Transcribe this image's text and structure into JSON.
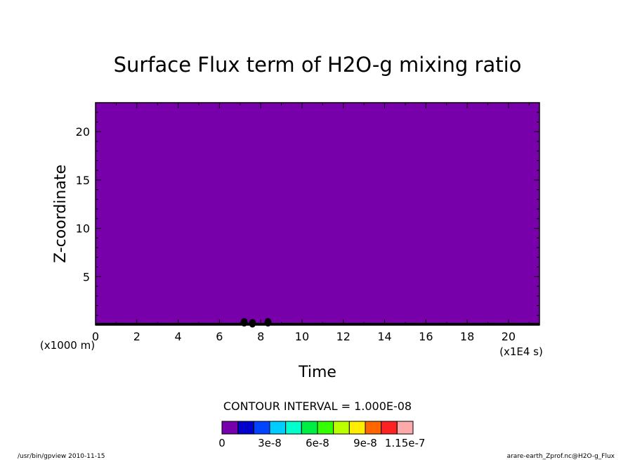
{
  "chart_data": {
    "type": "heatmap",
    "title": "Surface Flux term of H2O-g mixing ratio",
    "xlabel": "Time",
    "ylabel": "Z-coordinate",
    "x_unit": "(x1E4 s)",
    "y_unit": "(x1000 m)",
    "xlim": [
      0,
      21.5
    ],
    "ylim": [
      0,
      23
    ],
    "x_ticks": [
      {
        "value": 0,
        "label": "0"
      },
      {
        "value": 2,
        "label": "2"
      },
      {
        "value": 4,
        "label": "4"
      },
      {
        "value": 6,
        "label": "6"
      },
      {
        "value": 8,
        "label": "8"
      },
      {
        "value": 10,
        "label": "10"
      },
      {
        "value": 12,
        "label": "12"
      },
      {
        "value": 14,
        "label": "14"
      },
      {
        "value": 16,
        "label": "16"
      },
      {
        "value": 18,
        "label": "18"
      },
      {
        "value": 20,
        "label": "20"
      }
    ],
    "y_ticks": [
      {
        "value": 5,
        "label": "5"
      },
      {
        "value": 10,
        "label": "10"
      },
      {
        "value": 15,
        "label": "15"
      },
      {
        "value": 20,
        "label": "20"
      }
    ],
    "fill_color": "#7700aa",
    "near_surface_marks": [
      {
        "x": 7.2,
        "y": 0.2
      },
      {
        "x": 7.6,
        "y": 0.1
      },
      {
        "x": 8.35,
        "y": 0.2
      }
    ],
    "contour_interval_text": "CONTOUR INTERVAL = 1.000E-08",
    "colorbar": {
      "colors": [
        "#7700aa",
        "#0000cc",
        "#0044ff",
        "#00ccff",
        "#00ffcc",
        "#00ee44",
        "#33ff00",
        "#bbff00",
        "#ffee00",
        "#ff6600",
        "#ff2222",
        "#ffaaaa"
      ],
      "labels": [
        {
          "index": 0,
          "text": "0"
        },
        {
          "index": 3,
          "text": "3e-8"
        },
        {
          "index": 6,
          "text": "6e-8"
        },
        {
          "index": 9,
          "text": "9e-8"
        },
        {
          "index": 11.5,
          "text": "1.15e-7"
        }
      ]
    }
  },
  "footer": {
    "left": "/usr/bin/gpview  2010-11-15",
    "right": "arare-earth_Zprof.nc@H2O-g_Flux"
  }
}
